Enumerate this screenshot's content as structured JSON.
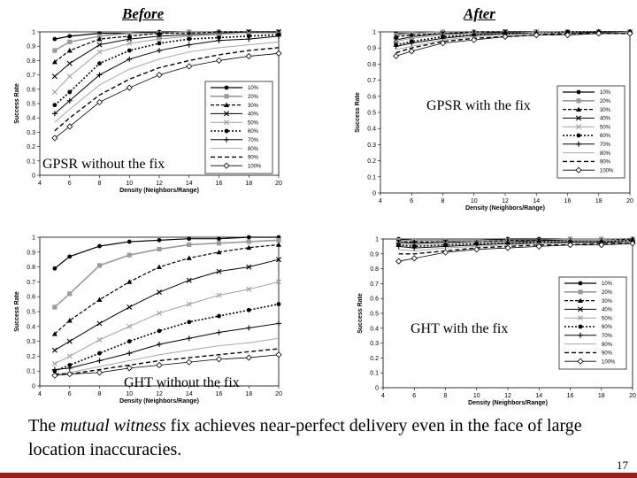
{
  "headings": {
    "before": "Before",
    "after": "After"
  },
  "caption": {
    "pre": "The ",
    "em": "mutual witness",
    "post": " fix achieves near-perfect delivery even in the face of large location inaccuracies."
  },
  "page_number": "17",
  "colors": {
    "bottom_bar": "#9b1c1c"
  },
  "chart_data": [
    {
      "id": "gpsr-before",
      "type": "line",
      "panel_label": "GPSR without the fix",
      "xlabel": "Density (Neighbors/Range)",
      "ylabel": "Success Rate",
      "x": [
        5,
        6,
        8,
        10,
        12,
        14,
        16,
        18,
        20
      ],
      "xticks": [
        4,
        6,
        8,
        10,
        12,
        14,
        16,
        18,
        20
      ],
      "yticks": [
        0,
        0.1,
        0.2,
        0.3,
        0.4,
        0.5,
        0.6,
        0.7,
        0.8,
        0.9,
        1
      ],
      "xlim": [
        4,
        20
      ],
      "ylim": [
        0,
        1
      ],
      "legend_position": "right",
      "series": [
        {
          "name": "10%",
          "values": [
            0.95,
            0.97,
            0.99,
            0.99,
            1.0,
            1.0,
            1.0,
            1.0,
            1.0
          ]
        },
        {
          "name": "20%",
          "values": [
            0.87,
            0.93,
            0.97,
            0.99,
            0.99,
            1.0,
            1.0,
            1.0,
            1.0
          ]
        },
        {
          "name": "30%",
          "values": [
            0.79,
            0.87,
            0.95,
            0.97,
            0.99,
            0.99,
            1.0,
            1.0,
            1.0
          ]
        },
        {
          "name": "40%",
          "values": [
            0.69,
            0.78,
            0.91,
            0.95,
            0.97,
            0.98,
            0.99,
            1.0,
            1.0
          ]
        },
        {
          "name": "50%",
          "values": [
            0.58,
            0.69,
            0.86,
            0.92,
            0.95,
            0.97,
            0.98,
            0.99,
            0.99
          ]
        },
        {
          "name": "60%",
          "values": [
            0.49,
            0.58,
            0.78,
            0.87,
            0.92,
            0.95,
            0.96,
            0.97,
            0.98
          ]
        },
        {
          "name": "70%",
          "values": [
            0.43,
            0.52,
            0.7,
            0.81,
            0.87,
            0.91,
            0.94,
            0.95,
            0.97
          ]
        },
        {
          "name": "80%",
          "values": [
            0.37,
            0.46,
            0.63,
            0.74,
            0.81,
            0.86,
            0.89,
            0.91,
            0.93
          ]
        },
        {
          "name": "90%",
          "values": [
            0.31,
            0.4,
            0.56,
            0.67,
            0.75,
            0.8,
            0.84,
            0.87,
            0.89
          ]
        },
        {
          "name": "100%",
          "values": [
            0.26,
            0.34,
            0.51,
            0.61,
            0.7,
            0.76,
            0.8,
            0.83,
            0.85
          ]
        }
      ]
    },
    {
      "id": "gpsr-after",
      "type": "line",
      "panel_label": "GPSR with the fix",
      "xlabel": "Density (Neighbors/Range)",
      "ylabel": "Success Rate",
      "x": [
        5,
        6,
        8,
        10,
        12,
        14,
        16,
        18,
        20
      ],
      "xticks": [
        4,
        6,
        8,
        10,
        12,
        14,
        16,
        18,
        20
      ],
      "yticks": [
        0,
        0.1,
        0.2,
        0.3,
        0.4,
        0.5,
        0.6,
        0.7,
        0.8,
        0.9,
        1
      ],
      "xlim": [
        4,
        20
      ],
      "ylim": [
        0,
        1
      ],
      "legend_position": "right",
      "series": [
        {
          "name": "10%",
          "values": [
            0.99,
            0.99,
            1.0,
            1.0,
            1.0,
            1.0,
            1.0,
            1.0,
            1.0
          ]
        },
        {
          "name": "20%",
          "values": [
            0.98,
            0.99,
            1.0,
            1.0,
            1.0,
            1.0,
            1.0,
            1.0,
            1.0
          ]
        },
        {
          "name": "30%",
          "values": [
            0.97,
            0.98,
            0.99,
            1.0,
            1.0,
            1.0,
            1.0,
            1.0,
            1.0
          ]
        },
        {
          "name": "40%",
          "values": [
            0.95,
            0.97,
            0.99,
            0.99,
            1.0,
            1.0,
            1.0,
            1.0,
            1.0
          ]
        },
        {
          "name": "50%",
          "values": [
            0.94,
            0.96,
            0.98,
            0.99,
            0.99,
            1.0,
            1.0,
            1.0,
            1.0
          ]
        },
        {
          "name": "60%",
          "values": [
            0.92,
            0.94,
            0.97,
            0.98,
            0.99,
            0.99,
            1.0,
            1.0,
            1.0
          ]
        },
        {
          "name": "70%",
          "values": [
            0.91,
            0.93,
            0.96,
            0.98,
            0.99,
            0.99,
            0.99,
            1.0,
            1.0
          ]
        },
        {
          "name": "80%",
          "values": [
            0.89,
            0.91,
            0.95,
            0.97,
            0.98,
            0.99,
            0.99,
            0.99,
            1.0
          ]
        },
        {
          "name": "90%",
          "values": [
            0.87,
            0.9,
            0.94,
            0.96,
            0.97,
            0.98,
            0.99,
            0.99,
            0.99
          ]
        },
        {
          "name": "100%",
          "values": [
            0.85,
            0.88,
            0.93,
            0.95,
            0.97,
            0.98,
            0.98,
            0.99,
            0.99
          ]
        }
      ]
    },
    {
      "id": "ght-before",
      "type": "line",
      "panel_label": "GHT without the fix",
      "xlabel": "Density (Neighbors/Range)",
      "ylabel": "Success Rate",
      "x": [
        5,
        6,
        8,
        10,
        12,
        14,
        16,
        18,
        20
      ],
      "xticks": [
        4,
        6,
        8,
        10,
        12,
        14,
        16,
        18,
        20
      ],
      "yticks": [
        0,
        0.1,
        0.2,
        0.3,
        0.4,
        0.5,
        0.6,
        0.7,
        0.8,
        0.9,
        1
      ],
      "xlim": [
        4,
        20
      ],
      "ylim": [
        0,
        1
      ],
      "legend_position": "right",
      "series": [
        {
          "name": "10%",
          "values": [
            0.79,
            0.87,
            0.94,
            0.97,
            0.98,
            0.99,
            0.99,
            1.0,
            1.0
          ]
        },
        {
          "name": "20%",
          "values": [
            0.53,
            0.62,
            0.81,
            0.88,
            0.92,
            0.95,
            0.96,
            0.97,
            0.98
          ]
        },
        {
          "name": "30%",
          "values": [
            0.35,
            0.44,
            0.58,
            0.7,
            0.8,
            0.86,
            0.9,
            0.93,
            0.95
          ]
        },
        {
          "name": "40%",
          "values": [
            0.24,
            0.3,
            0.42,
            0.53,
            0.63,
            0.71,
            0.77,
            0.8,
            0.85
          ]
        },
        {
          "name": "50%",
          "values": [
            0.15,
            0.2,
            0.31,
            0.4,
            0.49,
            0.55,
            0.61,
            0.65,
            0.7
          ]
        },
        {
          "name": "60%",
          "values": [
            0.1,
            0.14,
            0.22,
            0.3,
            0.37,
            0.43,
            0.47,
            0.51,
            0.55
          ]
        },
        {
          "name": "70%",
          "values": [
            0.11,
            0.12,
            0.17,
            0.22,
            0.28,
            0.32,
            0.36,
            0.39,
            0.42
          ]
        },
        {
          "name": "80%",
          "values": [
            0.08,
            0.09,
            0.13,
            0.17,
            0.21,
            0.24,
            0.27,
            0.29,
            0.32
          ]
        },
        {
          "name": "90%",
          "values": [
            0.08,
            0.08,
            0.11,
            0.14,
            0.17,
            0.19,
            0.21,
            0.23,
            0.25
          ]
        },
        {
          "name": "100%",
          "values": [
            0.07,
            0.08,
            0.09,
            0.12,
            0.14,
            0.16,
            0.18,
            0.19,
            0.21
          ]
        }
      ]
    },
    {
      "id": "ght-after",
      "type": "line",
      "panel_label": "GHT with the fix",
      "xlabel": "Density (Neighbors/Range)",
      "ylabel": "Success Rate",
      "x": [
        5,
        6,
        8,
        10,
        12,
        14,
        16,
        18,
        20
      ],
      "xticks": [
        4,
        6,
        8,
        10,
        12,
        14,
        16,
        18,
        20
      ],
      "yticks": [
        0,
        0.1,
        0.2,
        0.3,
        0.4,
        0.5,
        0.6,
        0.7,
        0.8,
        0.9,
        1
      ],
      "xlim": [
        4,
        20
      ],
      "ylim": [
        0,
        1
      ],
      "legend_position": "right",
      "series": [
        {
          "name": "10%",
          "values": [
            1.0,
            0.99,
            0.99,
            0.99,
            1.0,
            1.0,
            1.0,
            1.0,
            1.0
          ]
        },
        {
          "name": "20%",
          "values": [
            0.99,
            0.99,
            0.99,
            0.99,
            0.99,
            0.99,
            1.0,
            1.0,
            1.0
          ]
        },
        {
          "name": "30%",
          "values": [
            0.98,
            0.98,
            0.98,
            0.98,
            0.99,
            0.99,
            0.99,
            0.99,
            1.0
          ]
        },
        {
          "name": "40%",
          "values": [
            0.98,
            0.97,
            0.98,
            0.98,
            0.98,
            0.99,
            0.99,
            0.99,
            0.99
          ]
        },
        {
          "name": "50%",
          "values": [
            0.97,
            0.96,
            0.97,
            0.98,
            0.98,
            0.98,
            0.99,
            0.99,
            0.99
          ]
        },
        {
          "name": "60%",
          "values": [
            0.96,
            0.95,
            0.96,
            0.97,
            0.97,
            0.98,
            0.98,
            0.98,
            0.99
          ]
        },
        {
          "name": "70%",
          "values": [
            0.95,
            0.94,
            0.95,
            0.96,
            0.97,
            0.97,
            0.98,
            0.98,
            0.98
          ]
        },
        {
          "name": "80%",
          "values": [
            0.93,
            0.92,
            0.94,
            0.95,
            0.96,
            0.97,
            0.97,
            0.97,
            0.98
          ]
        },
        {
          "name": "90%",
          "values": [
            0.9,
            0.9,
            0.92,
            0.94,
            0.95,
            0.96,
            0.96,
            0.97,
            0.97
          ]
        },
        {
          "name": "100%",
          "values": [
            0.85,
            0.87,
            0.91,
            0.93,
            0.94,
            0.95,
            0.96,
            0.96,
            0.97
          ]
        }
      ]
    }
  ]
}
